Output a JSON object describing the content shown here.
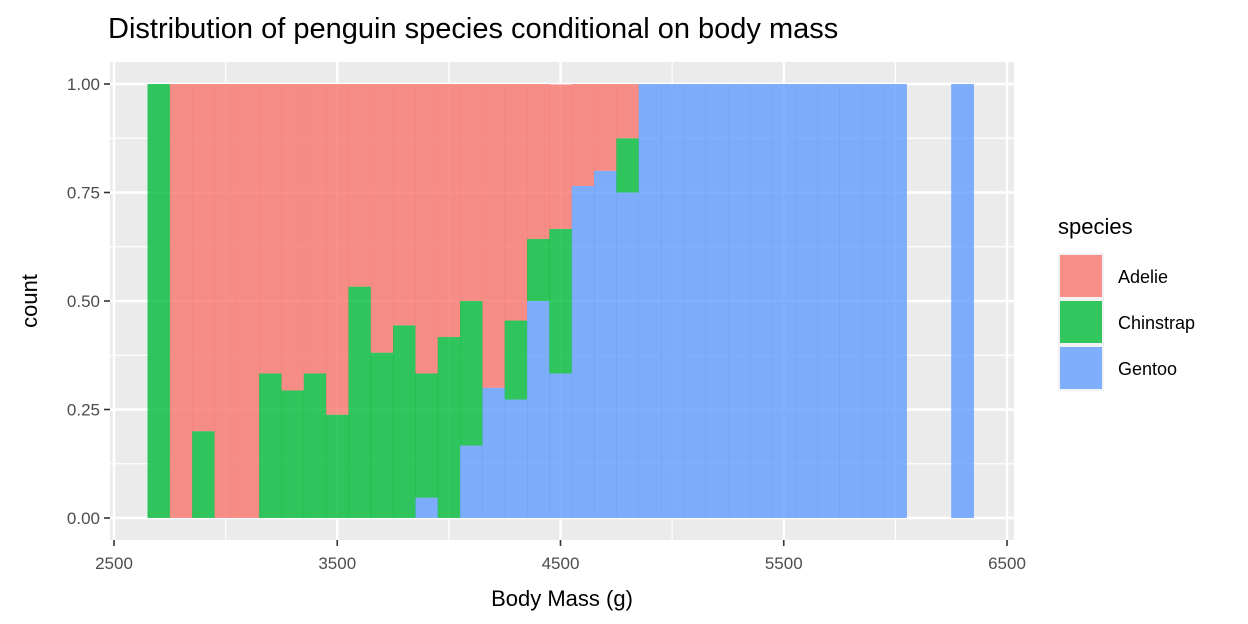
{
  "chart_data": {
    "type": "bar",
    "subtype": "stacked-fill-histogram",
    "title": "Distribution of penguin species conditional on body mass",
    "xlabel": "Body Mass (g)",
    "ylabel": "count",
    "xlim": [
      2500,
      6500
    ],
    "ylim": [
      0,
      1
    ],
    "x_ticks": [
      "2500",
      "3500",
      "4500",
      "5500",
      "6500"
    ],
    "y_ticks": [
      "0.00",
      "0.25",
      "0.50",
      "0.75",
      "1.00"
    ],
    "bin_width": 100,
    "grid": true,
    "stack_order": [
      "Gentoo",
      "Chinstrap",
      "Adelie"
    ],
    "legend": {
      "title": "species",
      "position": "right",
      "entries": [
        {
          "name": "Adelie",
          "color": "#F8766D"
        },
        {
          "name": "Chinstrap",
          "color": "#00BA38"
        },
        {
          "name": "Gentoo",
          "color": "#619CFF"
        }
      ]
    },
    "fill_alpha": 0.8,
    "bins": [
      {
        "start": 2650,
        "end": 2750,
        "Adelie": 0.0,
        "Chinstrap": 1.0,
        "Gentoo": 0.0
      },
      {
        "start": 2750,
        "end": 2850,
        "Adelie": 1.0,
        "Chinstrap": 0.0,
        "Gentoo": 0.0
      },
      {
        "start": 2850,
        "end": 2950,
        "Adelie": 0.8,
        "Chinstrap": 0.2,
        "Gentoo": 0.0
      },
      {
        "start": 2950,
        "end": 3050,
        "Adelie": 1.0,
        "Chinstrap": 0.0,
        "Gentoo": 0.0
      },
      {
        "start": 3050,
        "end": 3150,
        "Adelie": 1.0,
        "Chinstrap": 0.0,
        "Gentoo": 0.0
      },
      {
        "start": 3150,
        "end": 3250,
        "Adelie": 0.667,
        "Chinstrap": 0.333,
        "Gentoo": 0.0
      },
      {
        "start": 3250,
        "end": 3350,
        "Adelie": 0.706,
        "Chinstrap": 0.294,
        "Gentoo": 0.0
      },
      {
        "start": 3350,
        "end": 3450,
        "Adelie": 0.667,
        "Chinstrap": 0.333,
        "Gentoo": 0.0
      },
      {
        "start": 3450,
        "end": 3550,
        "Adelie": 0.762,
        "Chinstrap": 0.238,
        "Gentoo": 0.0
      },
      {
        "start": 3550,
        "end": 3650,
        "Adelie": 0.467,
        "Chinstrap": 0.533,
        "Gentoo": 0.0
      },
      {
        "start": 3650,
        "end": 3750,
        "Adelie": 0.619,
        "Chinstrap": 0.381,
        "Gentoo": 0.0
      },
      {
        "start": 3750,
        "end": 3850,
        "Adelie": 0.556,
        "Chinstrap": 0.444,
        "Gentoo": 0.0
      },
      {
        "start": 3850,
        "end": 3950,
        "Adelie": 0.667,
        "Chinstrap": 0.286,
        "Gentoo": 0.047
      },
      {
        "start": 3950,
        "end": 4050,
        "Adelie": 0.583,
        "Chinstrap": 0.417,
        "Gentoo": 0.0
      },
      {
        "start": 4050,
        "end": 4150,
        "Adelie": 0.5,
        "Chinstrap": 0.333,
        "Gentoo": 0.167
      },
      {
        "start": 4150,
        "end": 4250,
        "Adelie": 0.7,
        "Chinstrap": 0.0,
        "Gentoo": 0.3
      },
      {
        "start": 4250,
        "end": 4350,
        "Adelie": 0.545,
        "Chinstrap": 0.182,
        "Gentoo": 0.273
      },
      {
        "start": 4350,
        "end": 4450,
        "Adelie": 0.357,
        "Chinstrap": 0.143,
        "Gentoo": 0.5
      },
      {
        "start": 4450,
        "end": 4550,
        "Adelie": 0.333,
        "Chinstrap": 0.333,
        "Gentoo": 0.333
      },
      {
        "start": 4550,
        "end": 4650,
        "Adelie": 0.235,
        "Chinstrap": 0.0,
        "Gentoo": 0.765
      },
      {
        "start": 4650,
        "end": 4750,
        "Adelie": 0.2,
        "Chinstrap": 0.0,
        "Gentoo": 0.8
      },
      {
        "start": 4750,
        "end": 4850,
        "Adelie": 0.125,
        "Chinstrap": 0.125,
        "Gentoo": 0.75
      },
      {
        "start": 4850,
        "end": 4950,
        "Adelie": 0.0,
        "Chinstrap": 0.0,
        "Gentoo": 1.0
      },
      {
        "start": 4950,
        "end": 5050,
        "Adelie": 0.0,
        "Chinstrap": 0.0,
        "Gentoo": 1.0
      },
      {
        "start": 5050,
        "end": 5150,
        "Adelie": 0.0,
        "Chinstrap": 0.0,
        "Gentoo": 1.0
      },
      {
        "start": 5150,
        "end": 5250,
        "Adelie": 0.0,
        "Chinstrap": 0.0,
        "Gentoo": 1.0
      },
      {
        "start": 5250,
        "end": 5350,
        "Adelie": 0.0,
        "Chinstrap": 0.0,
        "Gentoo": 1.0
      },
      {
        "start": 5350,
        "end": 5450,
        "Adelie": 0.0,
        "Chinstrap": 0.0,
        "Gentoo": 1.0
      },
      {
        "start": 5450,
        "end": 5550,
        "Adelie": 0.0,
        "Chinstrap": 0.0,
        "Gentoo": 1.0
      },
      {
        "start": 5550,
        "end": 5650,
        "Adelie": 0.0,
        "Chinstrap": 0.0,
        "Gentoo": 1.0
      },
      {
        "start": 5650,
        "end": 5750,
        "Adelie": 0.0,
        "Chinstrap": 0.0,
        "Gentoo": 1.0
      },
      {
        "start": 5750,
        "end": 5850,
        "Adelie": 0.0,
        "Chinstrap": 0.0,
        "Gentoo": 1.0
      },
      {
        "start": 5850,
        "end": 5950,
        "Adelie": 0.0,
        "Chinstrap": 0.0,
        "Gentoo": 1.0
      },
      {
        "start": 5950,
        "end": 6050,
        "Adelie": 0.0,
        "Chinstrap": 0.0,
        "Gentoo": 1.0
      },
      {
        "start": 6250,
        "end": 6350,
        "Adelie": 0.0,
        "Chinstrap": 0.0,
        "Gentoo": 1.0
      }
    ]
  }
}
